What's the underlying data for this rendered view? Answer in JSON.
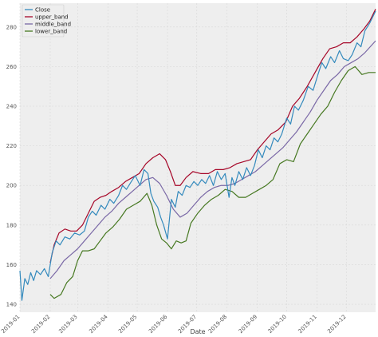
{
  "chart_data": {
    "type": "line",
    "title": "",
    "xlabel": "Date",
    "ylabel": "",
    "x_tick_labels": [
      "2019-01",
      "2019-02",
      "2019-03",
      "2019-04",
      "2019-05",
      "2019-06",
      "2019-07",
      "2019-08",
      "2019-09",
      "2019-10",
      "2019-11",
      "2019-12"
    ],
    "y_tick_labels": [
      "140",
      "160",
      "180",
      "200",
      "220",
      "240",
      "260",
      "280"
    ],
    "ylim": [
      136,
      292
    ],
    "xlim": [
      "2019-01-01",
      "2019-12-31"
    ],
    "grid": true,
    "legend_position": "top-left",
    "colors": {
      "Close": "#348abd",
      "upper_band": "#a60628",
      "middle_band": "#7a68a6",
      "lower_band": "#467821",
      "background": "#eeeeee",
      "grid": "#d8d8d8"
    },
    "series": [
      {
        "name": "Close",
        "points": [
          [
            "2019-01-01",
            157
          ],
          [
            "2019-01-03",
            142
          ],
          [
            "2019-01-06",
            153
          ],
          [
            "2019-01-09",
            150
          ],
          [
            "2019-01-12",
            156
          ],
          [
            "2019-01-15",
            152
          ],
          [
            "2019-01-18",
            157
          ],
          [
            "2019-01-22",
            155
          ],
          [
            "2019-01-26",
            158
          ],
          [
            "2019-01-30",
            154
          ],
          [
            "2019-02-03",
            166
          ],
          [
            "2019-02-07",
            172
          ],
          [
            "2019-02-11",
            170
          ],
          [
            "2019-02-16",
            174
          ],
          [
            "2019-02-21",
            173
          ],
          [
            "2019-02-26",
            176
          ],
          [
            "2019-03-03",
            175
          ],
          [
            "2019-03-08",
            177
          ],
          [
            "2019-03-12",
            184
          ],
          [
            "2019-03-16",
            187
          ],
          [
            "2019-03-20",
            185
          ],
          [
            "2019-03-25",
            190
          ],
          [
            "2019-03-29",
            188
          ],
          [
            "2019-04-03",
            193
          ],
          [
            "2019-04-07",
            191
          ],
          [
            "2019-04-12",
            195
          ],
          [
            "2019-04-16",
            200
          ],
          [
            "2019-04-20",
            198
          ],
          [
            "2019-04-25",
            202
          ],
          [
            "2019-04-29",
            205
          ],
          [
            "2019-05-04",
            200
          ],
          [
            "2019-05-08",
            208
          ],
          [
            "2019-05-12",
            206
          ],
          [
            "2019-05-15",
            196
          ],
          [
            "2019-05-18",
            192
          ],
          [
            "2019-05-22",
            189
          ],
          [
            "2019-05-25",
            184
          ],
          [
            "2019-05-28",
            180
          ],
          [
            "2019-06-01",
            173
          ],
          [
            "2019-06-05",
            193
          ],
          [
            "2019-06-09",
            189
          ],
          [
            "2019-06-12",
            197
          ],
          [
            "2019-06-16",
            195
          ],
          [
            "2019-06-20",
            200
          ],
          [
            "2019-06-24",
            199
          ],
          [
            "2019-06-28",
            202
          ],
          [
            "2019-07-02",
            200
          ],
          [
            "2019-07-06",
            203
          ],
          [
            "2019-07-10",
            201
          ],
          [
            "2019-07-14",
            205
          ],
          [
            "2019-07-18",
            200
          ],
          [
            "2019-07-22",
            207
          ],
          [
            "2019-07-26",
            203
          ],
          [
            "2019-07-30",
            206
          ],
          [
            "2019-08-03",
            194
          ],
          [
            "2019-08-06",
            204
          ],
          [
            "2019-08-09",
            200
          ],
          [
            "2019-08-13",
            207
          ],
          [
            "2019-08-17",
            203
          ],
          [
            "2019-08-21",
            209
          ],
          [
            "2019-08-25",
            205
          ],
          [
            "2019-08-29",
            210
          ],
          [
            "2019-09-02",
            218
          ],
          [
            "2019-09-06",
            214
          ],
          [
            "2019-09-10",
            220
          ],
          [
            "2019-09-14",
            218
          ],
          [
            "2019-09-18",
            224
          ],
          [
            "2019-09-22",
            222
          ],
          [
            "2019-09-26",
            226
          ],
          [
            "2019-10-01",
            234
          ],
          [
            "2019-10-05",
            231
          ],
          [
            "2019-10-09",
            240
          ],
          [
            "2019-10-13",
            238
          ],
          [
            "2019-10-18",
            243
          ],
          [
            "2019-10-23",
            250
          ],
          [
            "2019-10-28",
            248
          ],
          [
            "2019-11-02",
            256
          ],
          [
            "2019-11-06",
            262
          ],
          [
            "2019-11-10",
            259
          ],
          [
            "2019-11-15",
            265
          ],
          [
            "2019-11-19",
            262
          ],
          [
            "2019-11-24",
            268
          ],
          [
            "2019-11-28",
            264
          ],
          [
            "2019-12-03",
            263
          ],
          [
            "2019-12-07",
            266
          ],
          [
            "2019-12-12",
            272
          ],
          [
            "2019-12-16",
            270
          ],
          [
            "2019-12-20",
            278
          ],
          [
            "2019-12-25",
            282
          ],
          [
            "2019-12-31",
            288
          ]
        ]
      },
      {
        "name": "upper_band",
        "points": [
          [
            "2019-02-01",
            161
          ],
          [
            "2019-02-05",
            170
          ],
          [
            "2019-02-10",
            176
          ],
          [
            "2019-02-16",
            178
          ],
          [
            "2019-02-22",
            177
          ],
          [
            "2019-02-28",
            177
          ],
          [
            "2019-03-06",
            180
          ],
          [
            "2019-03-12",
            186
          ],
          [
            "2019-03-18",
            192
          ],
          [
            "2019-03-24",
            194
          ],
          [
            "2019-03-30",
            195
          ],
          [
            "2019-04-05",
            197
          ],
          [
            "2019-04-12",
            199
          ],
          [
            "2019-04-19",
            202
          ],
          [
            "2019-04-26",
            204
          ],
          [
            "2019-05-03",
            206
          ],
          [
            "2019-05-10",
            211
          ],
          [
            "2019-05-17",
            214
          ],
          [
            "2019-05-24",
            216
          ],
          [
            "2019-05-30",
            213
          ],
          [
            "2019-06-04",
            207
          ],
          [
            "2019-06-09",
            200
          ],
          [
            "2019-06-14",
            200
          ],
          [
            "2019-06-20",
            204
          ],
          [
            "2019-06-27",
            207
          ],
          [
            "2019-07-05",
            206
          ],
          [
            "2019-07-13",
            206
          ],
          [
            "2019-07-20",
            208
          ],
          [
            "2019-07-28",
            208
          ],
          [
            "2019-08-04",
            209
          ],
          [
            "2019-08-11",
            211
          ],
          [
            "2019-08-18",
            212
          ],
          [
            "2019-08-25",
            213
          ],
          [
            "2019-09-01",
            218
          ],
          [
            "2019-09-08",
            222
          ],
          [
            "2019-09-15",
            226
          ],
          [
            "2019-09-22",
            228
          ],
          [
            "2019-09-30",
            232
          ],
          [
            "2019-10-07",
            240
          ],
          [
            "2019-10-14",
            244
          ],
          [
            "2019-10-22",
            250
          ],
          [
            "2019-10-30",
            257
          ],
          [
            "2019-11-07",
            264
          ],
          [
            "2019-11-14",
            269
          ],
          [
            "2019-11-21",
            270
          ],
          [
            "2019-11-28",
            272
          ],
          [
            "2019-12-05",
            272
          ],
          [
            "2019-12-12",
            275
          ],
          [
            "2019-12-19",
            279
          ],
          [
            "2019-12-25",
            283
          ],
          [
            "2019-12-31",
            289
          ]
        ]
      },
      {
        "name": "middle_band",
        "points": [
          [
            "2019-02-01",
            153
          ],
          [
            "2019-02-08",
            157
          ],
          [
            "2019-02-15",
            162
          ],
          [
            "2019-02-22",
            165
          ],
          [
            "2019-03-01",
            168
          ],
          [
            "2019-03-08",
            172
          ],
          [
            "2019-03-15",
            176
          ],
          [
            "2019-03-22",
            180
          ],
          [
            "2019-03-29",
            184
          ],
          [
            "2019-04-05",
            187
          ],
          [
            "2019-04-12",
            191
          ],
          [
            "2019-04-19",
            194
          ],
          [
            "2019-04-26",
            197
          ],
          [
            "2019-05-03",
            200
          ],
          [
            "2019-05-10",
            203
          ],
          [
            "2019-05-17",
            204
          ],
          [
            "2019-05-24",
            201
          ],
          [
            "2019-05-31",
            195
          ],
          [
            "2019-06-07",
            188
          ],
          [
            "2019-06-14",
            184
          ],
          [
            "2019-06-21",
            186
          ],
          [
            "2019-06-28",
            190
          ],
          [
            "2019-07-05",
            194
          ],
          [
            "2019-07-12",
            197
          ],
          [
            "2019-07-19",
            199
          ],
          [
            "2019-07-26",
            200
          ],
          [
            "2019-08-02",
            200
          ],
          [
            "2019-08-09",
            201
          ],
          [
            "2019-08-16",
            203
          ],
          [
            "2019-08-23",
            205
          ],
          [
            "2019-08-30",
            207
          ],
          [
            "2019-09-06",
            210
          ],
          [
            "2019-09-13",
            213
          ],
          [
            "2019-09-20",
            216
          ],
          [
            "2019-09-27",
            219
          ],
          [
            "2019-10-04",
            223
          ],
          [
            "2019-10-11",
            227
          ],
          [
            "2019-10-18",
            232
          ],
          [
            "2019-10-25",
            237
          ],
          [
            "2019-11-01",
            243
          ],
          [
            "2019-11-08",
            248
          ],
          [
            "2019-11-15",
            253
          ],
          [
            "2019-11-22",
            256
          ],
          [
            "2019-11-29",
            260
          ],
          [
            "2019-12-06",
            262
          ],
          [
            "2019-12-13",
            264
          ],
          [
            "2019-12-20",
            267
          ],
          [
            "2019-12-31",
            273
          ]
        ]
      },
      {
        "name": "lower_band",
        "points": [
          [
            "2019-02-01",
            145
          ],
          [
            "2019-02-05",
            143
          ],
          [
            "2019-02-12",
            145
          ],
          [
            "2019-02-18",
            151
          ],
          [
            "2019-02-24",
            154
          ],
          [
            "2019-03-01",
            162
          ],
          [
            "2019-03-06",
            167
          ],
          [
            "2019-03-12",
            167
          ],
          [
            "2019-03-18",
            168
          ],
          [
            "2019-03-24",
            172
          ],
          [
            "2019-03-30",
            176
          ],
          [
            "2019-04-06",
            179
          ],
          [
            "2019-04-13",
            183
          ],
          [
            "2019-04-20",
            188
          ],
          [
            "2019-04-27",
            190
          ],
          [
            "2019-05-04",
            192
          ],
          [
            "2019-05-11",
            196
          ],
          [
            "2019-05-16",
            190
          ],
          [
            "2019-05-21",
            180
          ],
          [
            "2019-05-26",
            173
          ],
          [
            "2019-05-31",
            171
          ],
          [
            "2019-06-05",
            168
          ],
          [
            "2019-06-10",
            172
          ],
          [
            "2019-06-15",
            171
          ],
          [
            "2019-06-20",
            172
          ],
          [
            "2019-06-25",
            181
          ],
          [
            "2019-07-02",
            186
          ],
          [
            "2019-07-09",
            190
          ],
          [
            "2019-07-16",
            193
          ],
          [
            "2019-07-23",
            195
          ],
          [
            "2019-07-30",
            198
          ],
          [
            "2019-08-06",
            197
          ],
          [
            "2019-08-13",
            194
          ],
          [
            "2019-08-20",
            194
          ],
          [
            "2019-08-27",
            196
          ],
          [
            "2019-09-03",
            198
          ],
          [
            "2019-09-10",
            200
          ],
          [
            "2019-09-17",
            203
          ],
          [
            "2019-09-24",
            211
          ],
          [
            "2019-10-01",
            213
          ],
          [
            "2019-10-08",
            212
          ],
          [
            "2019-10-15",
            221
          ],
          [
            "2019-10-22",
            226
          ],
          [
            "2019-10-29",
            231
          ],
          [
            "2019-11-05",
            236
          ],
          [
            "2019-11-12",
            240
          ],
          [
            "2019-11-19",
            247
          ],
          [
            "2019-11-26",
            253
          ],
          [
            "2019-12-03",
            258
          ],
          [
            "2019-12-10",
            260
          ],
          [
            "2019-12-17",
            256
          ],
          [
            "2019-12-24",
            257
          ],
          [
            "2019-12-31",
            257
          ]
        ]
      }
    ]
  }
}
